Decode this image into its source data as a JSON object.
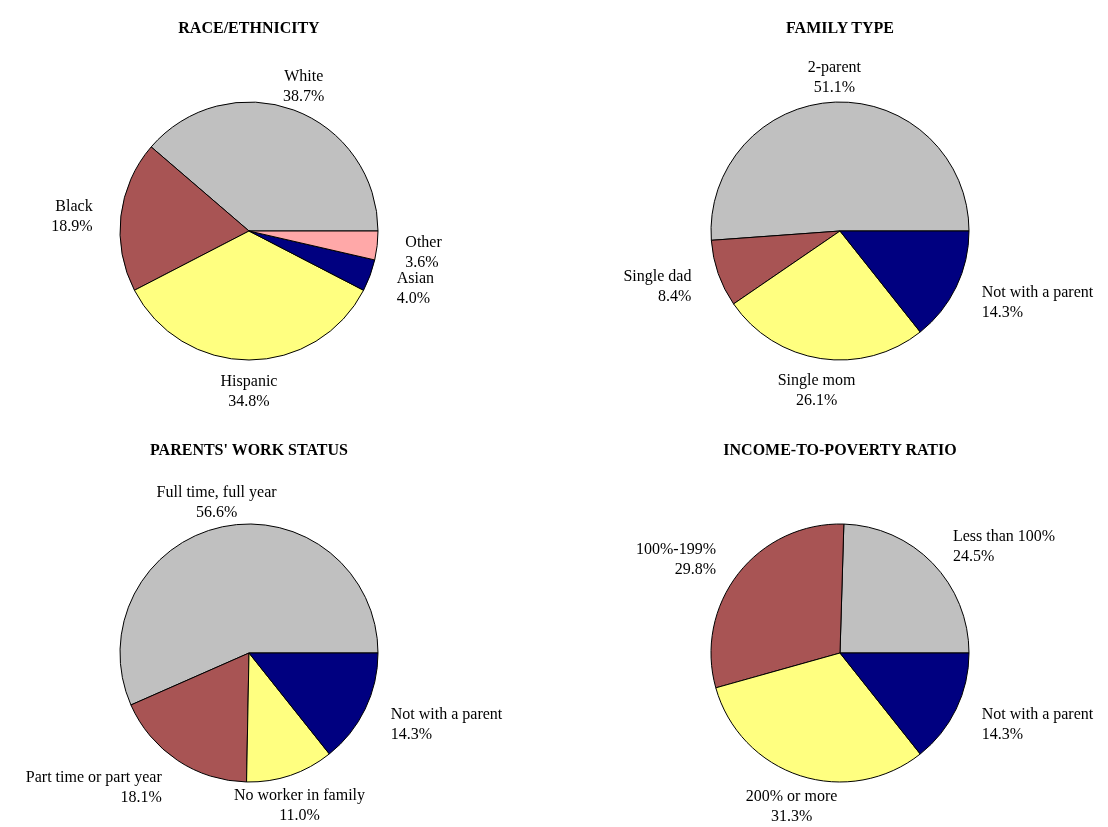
{
  "chart_data": [
    {
      "type": "pie",
      "title": "RACE/ETHNICITY",
      "categories": [
        "White",
        "Black",
        "Hispanic",
        "Asian",
        "Other"
      ],
      "values": [
        38.7,
        18.9,
        34.8,
        4.0,
        3.6
      ],
      "value_labels": [
        "38.7%",
        "18.9%",
        "34.8%",
        "4.0%",
        "3.6%"
      ],
      "colors": [
        "#c0c0c0",
        "#a85454",
        "#ffff80",
        "#000080",
        "#ffa8a8"
      ]
    },
    {
      "type": "pie",
      "title": "FAMILY TYPE",
      "categories": [
        "2-parent",
        "Single dad",
        "Single mom",
        "Not with a parent"
      ],
      "values": [
        51.1,
        8.4,
        26.1,
        14.3
      ],
      "value_labels": [
        "51.1%",
        "8.4%",
        "26.1%",
        "14.3%"
      ],
      "colors": [
        "#c0c0c0",
        "#a85454",
        "#ffff80",
        "#000080"
      ]
    },
    {
      "type": "pie",
      "title": "PARENTS' WORK STATUS",
      "categories": [
        "Full time, full year",
        "Part time or part year",
        "No worker in family",
        "Not with a parent"
      ],
      "values": [
        56.6,
        18.1,
        11.0,
        14.3
      ],
      "value_labels": [
        "56.6%",
        "18.1%",
        "11.0%",
        "14.3%"
      ],
      "colors": [
        "#c0c0c0",
        "#a85454",
        "#ffff80",
        "#000080"
      ]
    },
    {
      "type": "pie",
      "title": "INCOME-TO-POVERTY RATIO",
      "categories": [
        "Less than 100%",
        "100%-199%",
        "200% or more",
        "Not with a parent"
      ],
      "values": [
        24.5,
        29.8,
        31.3,
        14.3
      ],
      "value_labels": [
        "24.5%",
        "29.8%",
        "31.3%",
        "14.3%"
      ],
      "colors": [
        "#c0c0c0",
        "#a85454",
        "#ffff80",
        "#000080"
      ]
    }
  ]
}
